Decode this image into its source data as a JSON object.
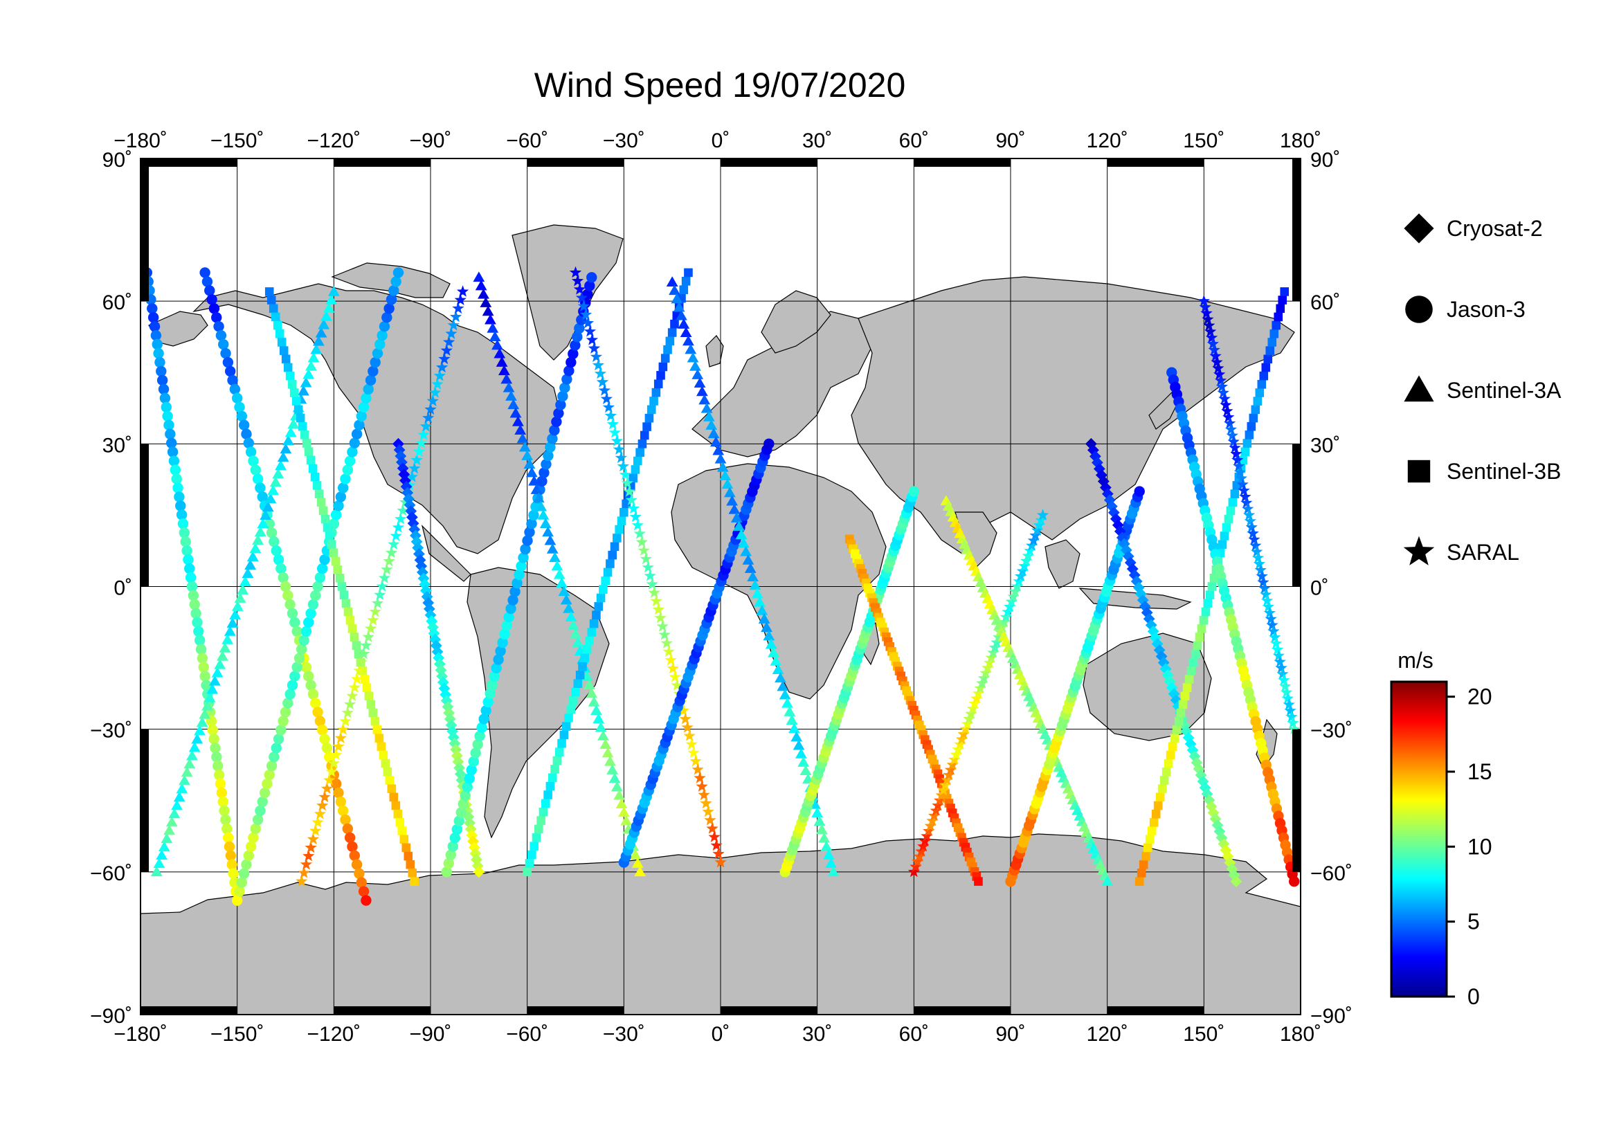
{
  "title": "Wind Speed 19/07/2020",
  "map": {
    "projection": "equirectangular",
    "lon_range": [
      -180,
      180
    ],
    "lat_range": [
      -90,
      90
    ],
    "lon_ticks": [
      "−180˚",
      "−150˚",
      "−120˚",
      "−90˚",
      "−60˚",
      "−30˚",
      "0˚",
      "30˚",
      "60˚",
      "90˚",
      "120˚",
      "150˚",
      "180˚"
    ],
    "lat_ticks_left": [
      "90˚",
      "60˚",
      "30˚",
      "0˚",
      "−30˚",
      "−60˚",
      "−90˚"
    ],
    "lat_ticks_right": [
      "90˚",
      "60˚",
      "30˚",
      "0˚",
      "−30˚",
      "−60˚",
      "−90˚"
    ],
    "grid": true,
    "land_color": "#bdbdbd",
    "ocean_color": "#ffffff"
  },
  "legend": {
    "placement": "right",
    "items": [
      {
        "label": "Cryosat-2",
        "marker": "diamond"
      },
      {
        "label": "Jason-3",
        "marker": "circle"
      },
      {
        "label": "Sentinel-3A",
        "marker": "triangle"
      },
      {
        "label": "Sentinel-3B",
        "marker": "square"
      },
      {
        "label": "SARAL",
        "marker": "star"
      }
    ]
  },
  "colorbar": {
    "unit": "m/s",
    "range": [
      0,
      21
    ],
    "ticks": [
      "0",
      "5",
      "10",
      "15",
      "20"
    ],
    "tick_values": [
      0,
      5,
      10,
      15,
      20
    ],
    "colormap": [
      "#00008f",
      "#0000ff",
      "#0080ff",
      "#00ffff",
      "#80ff80",
      "#ffff00",
      "#ff8000",
      "#ff0000",
      "#800000"
    ]
  },
  "chart_data": {
    "type": "scatter",
    "title": "Wind Speed 19/07/2020",
    "xlabel": "",
    "ylabel": "",
    "xlim": [
      -180,
      180
    ],
    "ylim": [
      -90,
      90
    ],
    "value_unit": "m/s",
    "tracks": [
      {
        "satellite": "Jason-3",
        "lon_start": -178,
        "lat_start": 66,
        "lon_end": -150,
        "lat_end": -66,
        "speed_start": 4,
        "speed_end": 14
      },
      {
        "satellite": "Jason-3",
        "lon_start": -160,
        "lat_start": 66,
        "lon_end": -110,
        "lat_end": -66,
        "speed_start": 3,
        "speed_end": 17
      },
      {
        "satellite": "Jason-3",
        "lon_start": -150,
        "lat_start": -66,
        "lon_end": -100,
        "lat_end": 66,
        "speed_start": 12,
        "speed_end": 5
      },
      {
        "satellite": "Sentinel-3A",
        "lon_start": -175,
        "lat_start": -60,
        "lon_end": -120,
        "lat_end": 62,
        "speed_start": 9,
        "speed_end": 7
      },
      {
        "satellite": "Sentinel-3B",
        "lon_start": -140,
        "lat_start": 62,
        "lon_end": -95,
        "lat_end": -62,
        "speed_start": 6,
        "speed_end": 15
      },
      {
        "satellite": "SARAL",
        "lon_start": -130,
        "lat_start": -62,
        "lon_end": -80,
        "lat_end": 62,
        "speed_start": 16,
        "speed_end": 4
      },
      {
        "satellite": "Cryosat-2",
        "lon_start": -100,
        "lat_start": 30,
        "lon_end": -75,
        "lat_end": -60,
        "speed_start": 3,
        "speed_end": 13
      },
      {
        "satellite": "Jason-3",
        "lon_start": -85,
        "lat_start": -60,
        "lon_end": -40,
        "lat_end": 65,
        "speed_start": 10,
        "speed_end": 3
      },
      {
        "satellite": "Sentinel-3A",
        "lon_start": -75,
        "lat_start": 65,
        "lon_end": -25,
        "lat_end": -60,
        "speed_start": 2,
        "speed_end": 12
      },
      {
        "satellite": "Sentinel-3B",
        "lon_start": -60,
        "lat_start": -60,
        "lon_end": -10,
        "lat_end": 66,
        "speed_start": 9,
        "speed_end": 4
      },
      {
        "satellite": "SARAL",
        "lon_start": -45,
        "lat_start": 66,
        "lon_end": 0,
        "lat_end": -58,
        "speed_start": 3,
        "speed_end": 17
      },
      {
        "satellite": "Jason-3",
        "lon_start": -30,
        "lat_start": -58,
        "lon_end": 15,
        "lat_end": 30,
        "speed_start": 6,
        "speed_end": 3
      },
      {
        "satellite": "Sentinel-3A",
        "lon_start": -15,
        "lat_start": 64,
        "lon_end": 35,
        "lat_end": -60,
        "speed_start": 4,
        "speed_end": 9
      },
      {
        "satellite": "Jason-3",
        "lon_start": 20,
        "lat_start": -60,
        "lon_end": 60,
        "lat_end": 20,
        "speed_start": 12,
        "speed_end": 8
      },
      {
        "satellite": "Sentinel-3B",
        "lon_start": 40,
        "lat_start": 10,
        "lon_end": 80,
        "lat_end": -62,
        "speed_start": 14,
        "speed_end": 17
      },
      {
        "satellite": "SARAL",
        "lon_start": 60,
        "lat_start": -60,
        "lon_end": 100,
        "lat_end": 15,
        "speed_start": 18,
        "speed_end": 6
      },
      {
        "satellite": "Sentinel-3A",
        "lon_start": 70,
        "lat_start": 18,
        "lon_end": 120,
        "lat_end": -62,
        "speed_start": 13,
        "speed_end": 9
      },
      {
        "satellite": "Jason-3",
        "lon_start": 90,
        "lat_start": -62,
        "lon_end": 130,
        "lat_end": 20,
        "speed_start": 17,
        "speed_end": 4
      },
      {
        "satellite": "Cryosat-2",
        "lon_start": 115,
        "lat_start": 30,
        "lon_end": 160,
        "lat_end": -62,
        "speed_start": 2,
        "speed_end": 12
      },
      {
        "satellite": "Sentinel-3B",
        "lon_start": 130,
        "lat_start": -62,
        "lon_end": 175,
        "lat_end": 62,
        "speed_start": 15,
        "speed_end": 3
      },
      {
        "satellite": "SARAL",
        "lon_start": 150,
        "lat_start": 60,
        "lon_end": 178,
        "lat_end": -30,
        "speed_start": 2,
        "speed_end": 8
      },
      {
        "satellite": "Jason-3",
        "lon_start": 140,
        "lat_start": 45,
        "lon_end": 178,
        "lat_end": -62,
        "speed_start": 3,
        "speed_end": 18
      }
    ]
  }
}
